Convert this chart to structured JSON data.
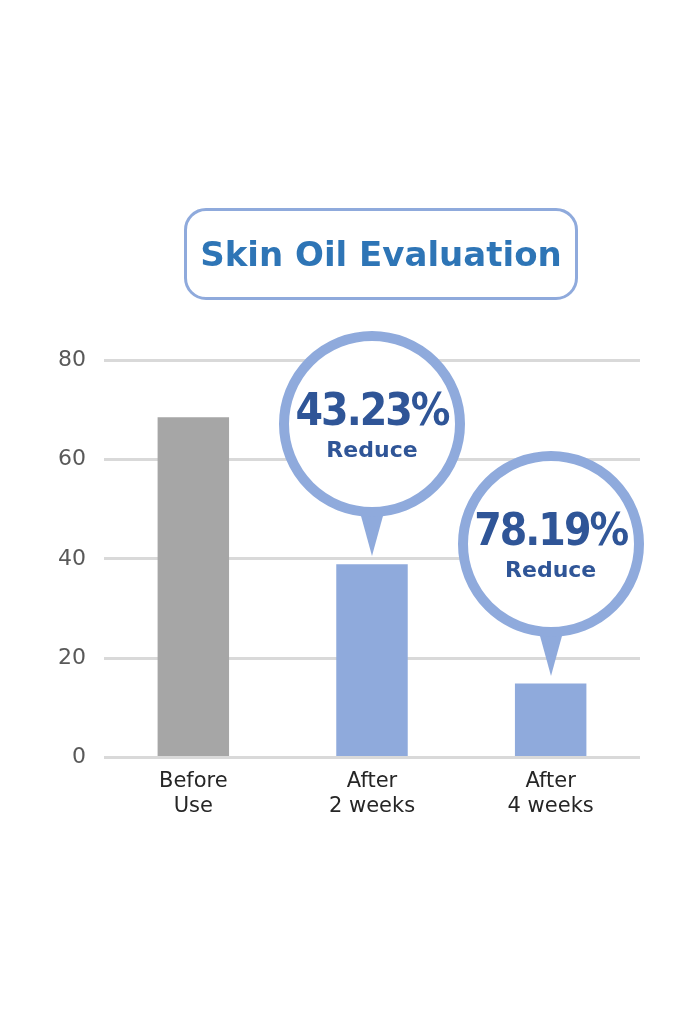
{
  "chart_data": {
    "type": "bar",
    "title": "Skin Oil Evaluation",
    "categories": [
      "Before Use",
      "After 2 weeks",
      "After 4 weeks"
    ],
    "values": [
      68.5,
      38.9,
      14.9
    ],
    "colors": [
      "#a6a6a6",
      "#8faadc",
      "#8faadc"
    ],
    "ylim": [
      0,
      80
    ],
    "yticks": [
      0,
      20,
      40,
      60,
      80
    ],
    "grid": "y",
    "legend": false,
    "annotations": [
      {
        "text": "43.23% Reduce",
        "x": "After 2 weeks",
        "y": 38.9
      },
      {
        "text": "78.19% Reduce",
        "x": "After 4 weeks",
        "y": 14.9
      }
    ]
  }
}
